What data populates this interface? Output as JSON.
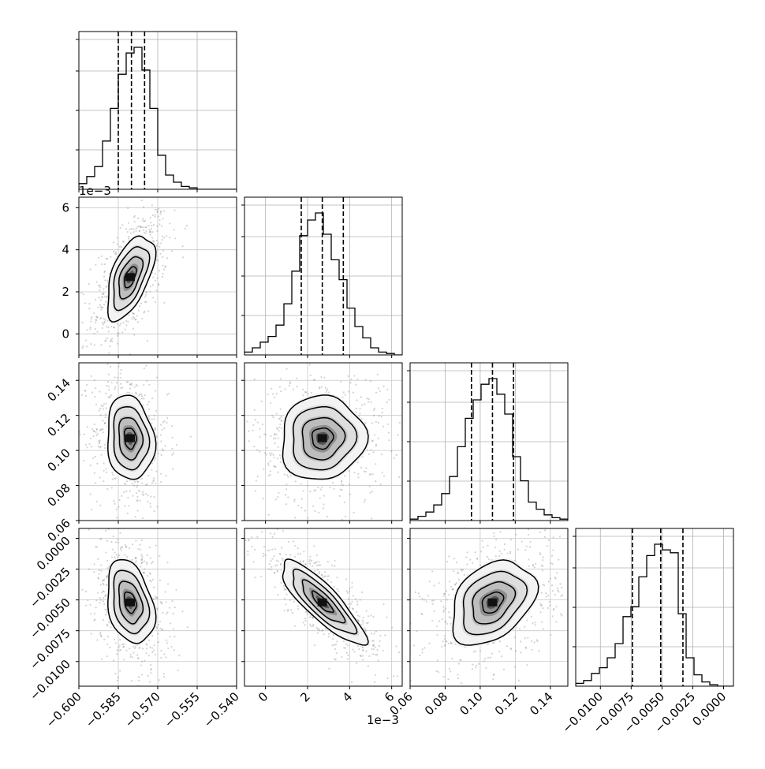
{
  "chart_data": {
    "type": "corner",
    "params": [
      {
        "id": "p0",
        "range": [
          -0.6,
          -0.54
        ],
        "ticks": [
          -0.6,
          -0.585,
          -0.57,
          -0.555,
          -0.54
        ],
        "tick_labels": [
          "−0.600",
          "−0.585",
          "−0.570",
          "−0.555",
          "−0.540"
        ],
        "quantiles": [
          -0.585,
          -0.58,
          -0.575
        ],
        "hist_bins": [
          -0.6,
          -0.597,
          -0.594,
          -0.591,
          -0.588,
          -0.585,
          -0.582,
          -0.579,
          -0.576,
          -0.573,
          -0.57,
          -0.567,
          -0.564,
          -0.561,
          -0.558,
          -0.555,
          -0.552,
          -0.549,
          -0.546,
          -0.543,
          -0.54
        ],
        "hist": [
          0.04,
          0.09,
          0.16,
          0.34,
          0.57,
          0.81,
          0.96,
          1.0,
          0.84,
          0.57,
          0.24,
          0.1,
          0.05,
          0.02,
          0.01,
          0.0,
          0.0,
          0.0,
          0.0,
          0.0
        ],
        "mean": -0.5805,
        "sd": 0.0045
      },
      {
        "id": "p1",
        "range": [
          -0.001,
          0.0065
        ],
        "ticks": [
          0.0,
          0.002,
          0.004,
          0.006
        ],
        "tick_labels": [
          "0",
          "2",
          "4",
          "6"
        ],
        "offset_label": "1e−3",
        "quantiles": [
          0.0017,
          0.0027,
          0.0037
        ],
        "hist_bins": [
          -0.001,
          -0.000625,
          -0.00025,
          0.000125,
          0.0005,
          0.000875,
          0.00125,
          0.001625,
          0.002,
          0.002375,
          0.00275,
          0.003125,
          0.0035,
          0.003875,
          0.00425,
          0.004625,
          0.005,
          0.005375,
          0.00575,
          0.006125,
          0.0065
        ],
        "hist": [
          0.02,
          0.05,
          0.09,
          0.13,
          0.21,
          0.36,
          0.59,
          0.84,
          0.95,
          1.0,
          0.85,
          0.67,
          0.53,
          0.33,
          0.2,
          0.12,
          0.05,
          0.02,
          0.01,
          0.0
        ],
        "mean": 0.0027,
        "sd": 0.001
      },
      {
        "id": "p2",
        "range": [
          0.06,
          0.15
        ],
        "ticks": [
          0.06,
          0.08,
          0.1,
          0.12,
          0.14
        ],
        "tick_labels": [
          "0.06",
          "0.08",
          "0.10",
          "0.12",
          "0.14"
        ],
        "quantiles": [
          0.095,
          0.107,
          0.119
        ],
        "hist_bins": [
          0.06,
          0.0645,
          0.069,
          0.0735,
          0.078,
          0.0825,
          0.087,
          0.0915,
          0.096,
          0.1005,
          0.105,
          0.1095,
          0.114,
          0.1185,
          0.123,
          0.1275,
          0.132,
          0.1365,
          0.141,
          0.1455,
          0.15
        ],
        "hist": [
          0.01,
          0.03,
          0.06,
          0.11,
          0.19,
          0.31,
          0.52,
          0.72,
          0.85,
          0.96,
          1.0,
          0.89,
          0.75,
          0.45,
          0.28,
          0.13,
          0.08,
          0.04,
          0.02,
          0.01
        ],
        "mean": 0.107,
        "sd": 0.012
      },
      {
        "id": "p3",
        "range": [
          -0.012,
          0.0008
        ],
        "ticks": [
          -0.01,
          -0.0075,
          -0.005,
          -0.0025,
          0.0
        ],
        "tick_labels": [
          "−0.0100",
          "−0.0075",
          "−0.0050",
          "−0.0025",
          "0.0000"
        ],
        "y_tick_labels": [
          "−0.0100",
          "−0.0075",
          "−0.0050",
          "−0.0025",
          "0.0000"
        ],
        "quantiles": [
          -0.0074,
          -0.0051,
          -0.0033
        ],
        "hist_bins": [
          -0.012,
          -0.01136,
          -0.01072,
          -0.01008,
          -0.00944,
          -0.0088,
          -0.00816,
          -0.00752,
          -0.00688,
          -0.00624,
          -0.0056,
          -0.00496,
          -0.00432,
          -0.00368,
          -0.00304,
          -0.0024,
          -0.00176,
          -0.00112,
          -0.00048,
          0.00016,
          0.0008
        ],
        "hist": [
          0.02,
          0.04,
          0.09,
          0.13,
          0.2,
          0.3,
          0.49,
          0.56,
          0.77,
          0.92,
          1.0,
          0.96,
          0.94,
          0.51,
          0.2,
          0.08,
          0.03,
          0.01,
          0.0,
          0.0
        ],
        "mean": -0.0052,
        "sd": 0.0017
      }
    ],
    "y_tick_labels_row2": [
      "0.06",
      "0.08",
      "0.10",
      "0.12",
      "0.14"
    ],
    "y_tick_labels_row1": [
      "0",
      "2",
      "4",
      "6"
    ],
    "y_offset_label": "1e−3",
    "x_offset_label": "1e−3",
    "correlations": {
      "0-1": 0.55,
      "0-2": -0.12,
      "1-2": 0.05,
      "0-3": -0.3,
      "1-3": -0.85,
      "2-3": 0.35
    },
    "contour_levels_sigma": [
      0.5,
      1.0,
      1.5,
      2.0
    ],
    "grid": true,
    "legend": "none"
  }
}
